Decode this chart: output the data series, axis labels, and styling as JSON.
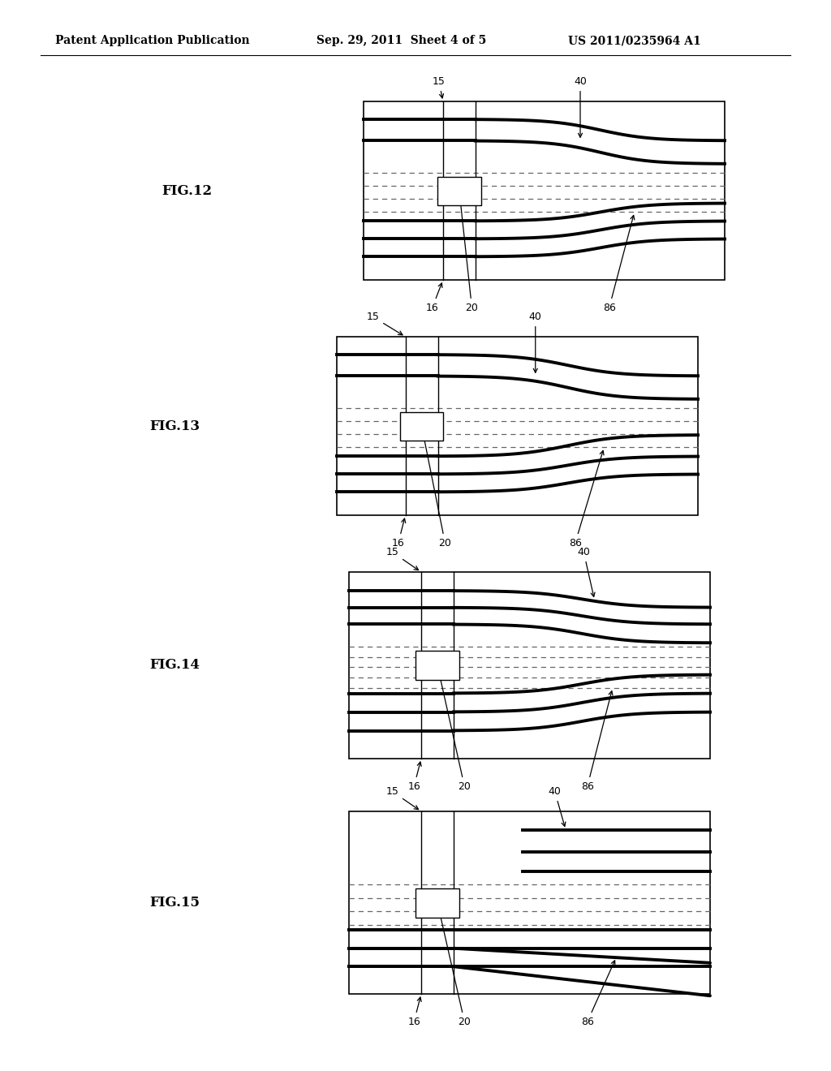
{
  "header_left": "Patent Application Publication",
  "header_mid": "Sep. 29, 2011  Sheet 4 of 5",
  "header_right": "US 2011/0235964 A1",
  "fig_labels": [
    "FIG.12",
    "FIG.13",
    "FIG.14",
    "FIG.15"
  ],
  "bg_color": "#ffffff"
}
